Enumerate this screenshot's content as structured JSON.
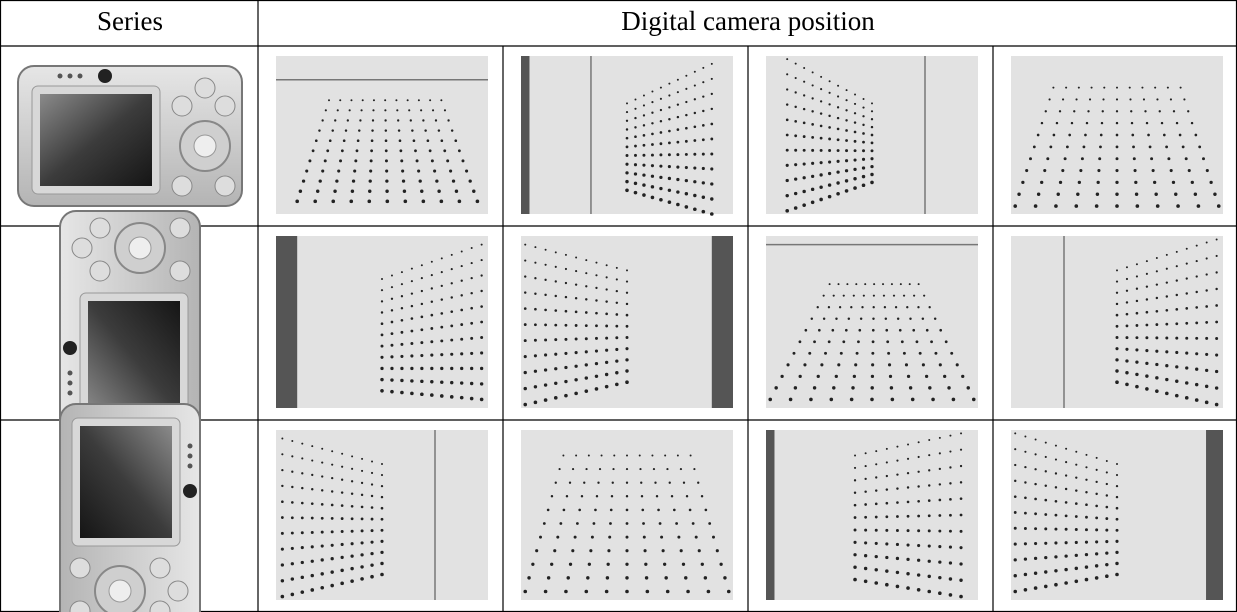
{
  "table": {
    "header": [
      "Series",
      "Digital camera position"
    ]
  }
}
